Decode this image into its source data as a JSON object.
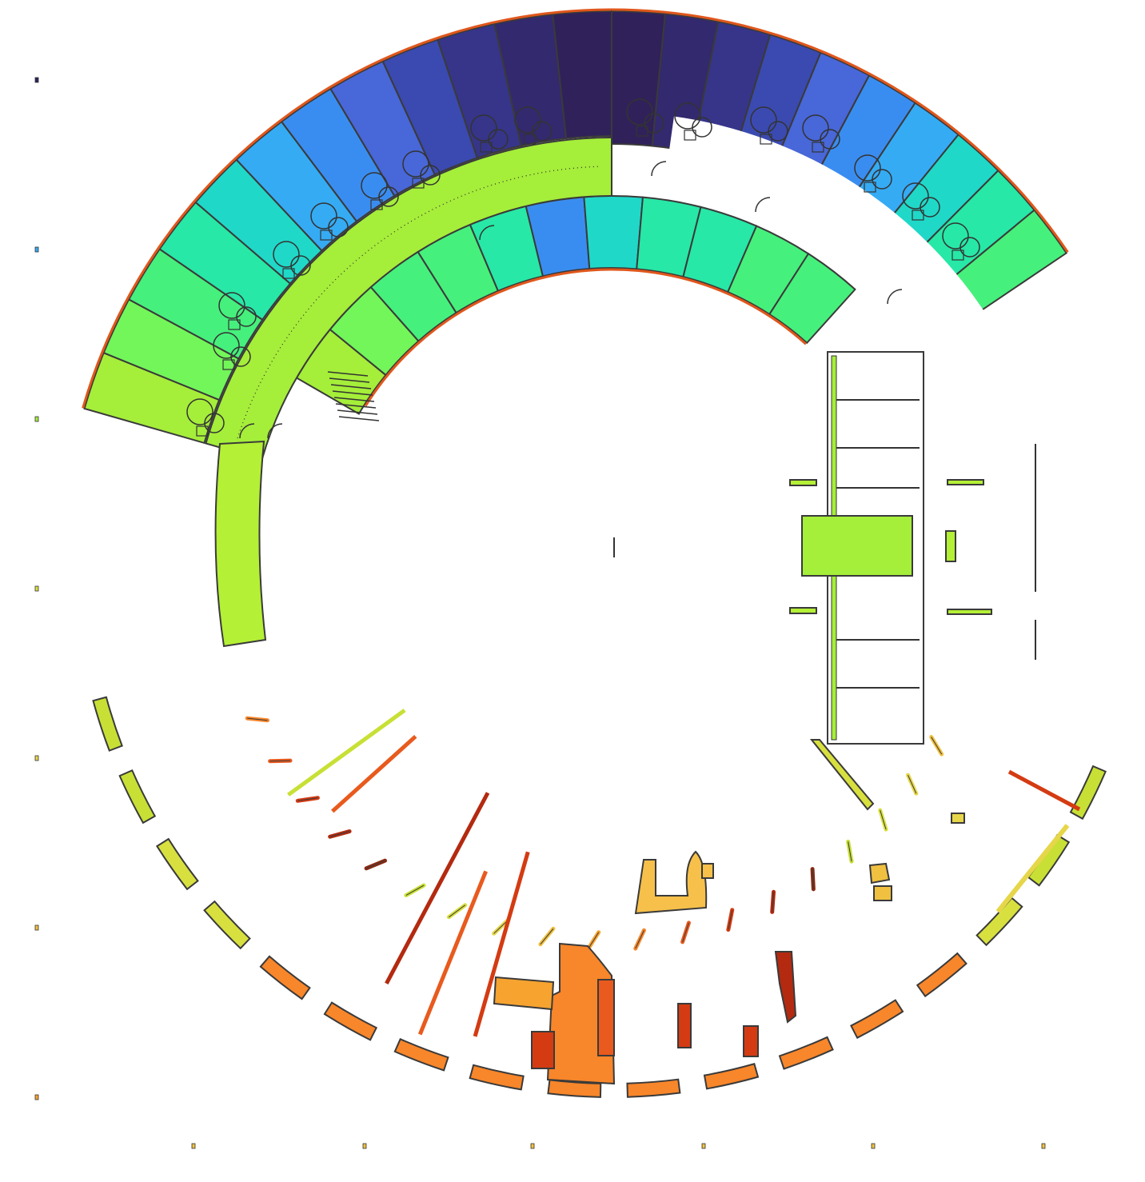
{
  "palette": {
    "stroke": "#3a3a3a",
    "wall_accent": "#e0571c",
    "corridor": "#a5ee3a",
    "ring_north": [
      "#7a4a8a",
      "#30215a",
      "#33296e",
      "#36358a",
      "#3b4ab0",
      "#4867d8",
      "#3a8df0",
      "#35abf4",
      "#20d8c8",
      "#27e8a6",
      "#46f07c",
      "#72f659",
      "#a5ee3a"
    ],
    "ring_east": [
      "#30215a",
      "#33296e",
      "#36358a",
      "#3b4ab0",
      "#4867d8",
      "#3a8df0",
      "#35abf4",
      "#20d8c8",
      "#27e8a6",
      "#46f07c"
    ],
    "south_warm": [
      "#c8e035",
      "#d8e040",
      "#e6d64a",
      "#f0c040",
      "#f6a330",
      "#f8862a",
      "#e85a1e",
      "#d43b12",
      "#b32a10",
      "#8a2a12"
    ]
  },
  "features": {
    "stair_icon": "stair-icon",
    "door_swing_icon": "door-swing-icon",
    "toilet_fixture_icon": "toilet-fixture-icon"
  }
}
